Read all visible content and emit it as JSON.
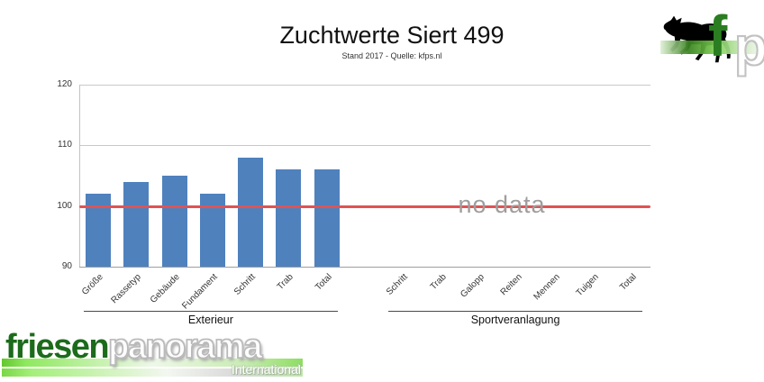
{
  "header": {
    "title": "Zuchtwerte Siert 499",
    "subtitle": "Stand 2017 - Quelle: kfps.nl"
  },
  "chart_data": {
    "type": "bar",
    "title": "Zuchtwerte Siert 499",
    "subtitle": "Stand 2017 - Quelle: kfps.nl",
    "ylim": [
      90,
      120
    ],
    "yticks": [
      90,
      100,
      110,
      120
    ],
    "grid": true,
    "legend": false,
    "bar_color": "#4f81bd",
    "baseline": {
      "value": 100,
      "color": "#e05353"
    },
    "no_data_label": "no data",
    "groups": [
      {
        "label": "Exterieur",
        "categories": [
          "Größe",
          "Rassetyp",
          "Gebäude",
          "Fundament",
          "Schritt",
          "Trab",
          "Total"
        ],
        "values": [
          102,
          104,
          105,
          102,
          108,
          106,
          106
        ]
      },
      {
        "label": "Sportveranlagung",
        "categories": [
          "Schritt",
          "Trab",
          "Galopp",
          "Reiten",
          "Mennen",
          "Tuigen",
          "Total"
        ],
        "values": [
          null,
          null,
          null,
          null,
          null,
          null,
          null
        ]
      }
    ]
  },
  "branding": {
    "corner_logo": {
      "letter_f": "f",
      "letter_p": "p"
    },
    "footer_logo": {
      "word1": "friesen",
      "word2": "panorama",
      "tagline": "International"
    }
  },
  "colors": {
    "bar": "#4f81bd",
    "baseline": "#e05353",
    "grid": "#c9c9c9",
    "axis": "#9e9e9e",
    "no_data_text": "#9e9e9e",
    "logo_green": "#1c6b1c"
  }
}
